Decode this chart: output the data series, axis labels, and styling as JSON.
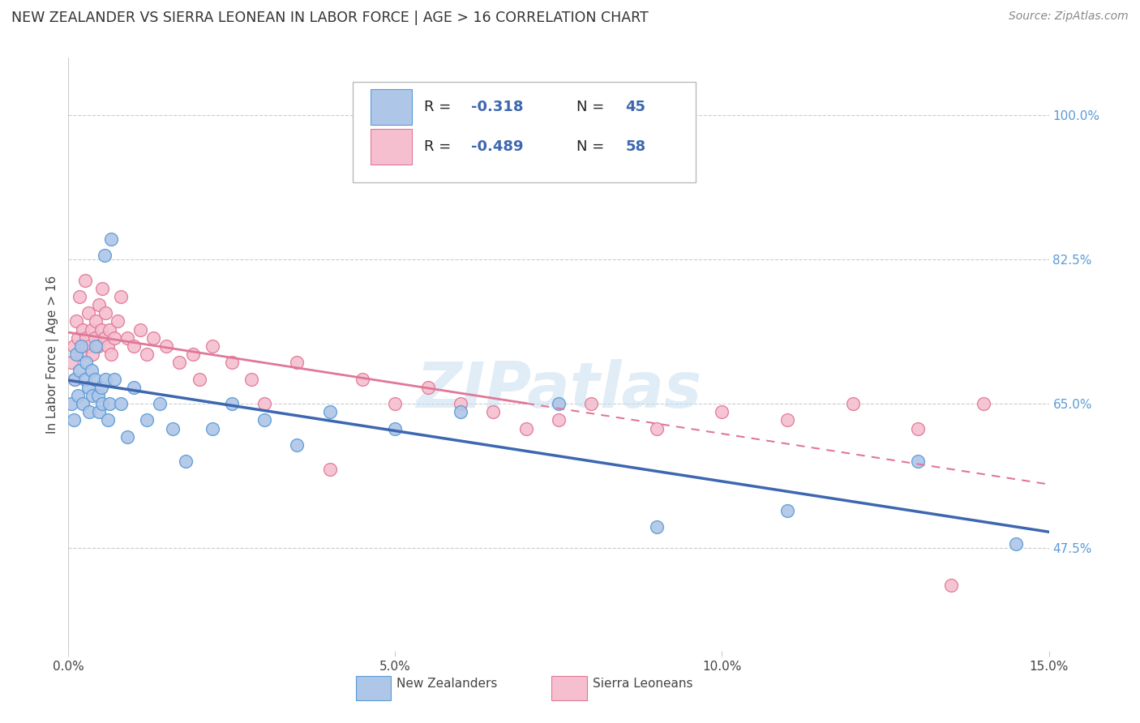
{
  "title": "NEW ZEALANDER VS SIERRA LEONEAN IN LABOR FORCE | AGE > 16 CORRELATION CHART",
  "source": "Source: ZipAtlas.com",
  "xlabel_ticks": [
    "0.0%",
    "5.0%",
    "10.0%",
    "15.0%"
  ],
  "xlabel_tick_vals": [
    0.0,
    5.0,
    10.0,
    15.0
  ],
  "ylabel_ticks": [
    "47.5%",
    "65.0%",
    "82.5%",
    "100.0%"
  ],
  "ylabel_tick_vals": [
    47.5,
    65.0,
    82.5,
    100.0
  ],
  "ylabel_label": "In Labor Force | Age > 16",
  "xlim": [
    0.0,
    15.0
  ],
  "ylim": [
    35.0,
    107.0
  ],
  "watermark": "ZIPatlas",
  "nz_color": "#aec6e8",
  "nz_edge_color": "#5b9bd5",
  "sl_color": "#f5bfd0",
  "sl_edge_color": "#e07898",
  "nz_line_color": "#3d67b0",
  "sl_line_color": "#e07898",
  "legend_r_nz": "-0.318",
  "legend_n_nz": "45",
  "legend_r_sl": "-0.489",
  "legend_n_sl": "58",
  "nz_x": [
    0.05,
    0.08,
    0.1,
    0.12,
    0.15,
    0.17,
    0.2,
    0.22,
    0.25,
    0.27,
    0.3,
    0.32,
    0.35,
    0.37,
    0.4,
    0.42,
    0.45,
    0.47,
    0.5,
    0.52,
    0.55,
    0.57,
    0.6,
    0.63,
    0.65,
    0.7,
    0.8,
    0.9,
    1.0,
    1.2,
    1.4,
    1.6,
    1.8,
    2.2,
    2.5,
    3.0,
    3.5,
    4.0,
    5.0,
    6.0,
    7.5,
    9.0,
    11.0,
    13.0,
    14.5
  ],
  "nz_y": [
    65,
    63,
    68,
    71,
    66,
    69,
    72,
    65,
    68,
    70,
    67,
    64,
    69,
    66,
    68,
    72,
    66,
    64,
    67,
    65,
    83,
    68,
    63,
    65,
    85,
    68,
    65,
    61,
    67,
    63,
    65,
    62,
    58,
    62,
    65,
    63,
    60,
    64,
    62,
    64,
    65,
    50,
    52,
    58,
    48
  ],
  "sl_x": [
    0.05,
    0.08,
    0.1,
    0.12,
    0.15,
    0.17,
    0.2,
    0.22,
    0.25,
    0.27,
    0.3,
    0.32,
    0.35,
    0.37,
    0.4,
    0.42,
    0.45,
    0.47,
    0.5,
    0.52,
    0.55,
    0.57,
    0.6,
    0.63,
    0.65,
    0.7,
    0.75,
    0.8,
    0.9,
    1.0,
    1.1,
    1.2,
    1.3,
    1.5,
    1.7,
    1.9,
    2.0,
    2.2,
    2.5,
    2.8,
    3.0,
    3.5,
    4.0,
    4.5,
    5.0,
    5.5,
    6.0,
    6.5,
    7.0,
    7.5,
    8.0,
    9.0,
    10.0,
    11.0,
    12.0,
    13.0,
    13.5,
    14.0
  ],
  "sl_y": [
    70,
    72,
    68,
    75,
    73,
    78,
    71,
    74,
    80,
    73,
    76,
    72,
    74,
    71,
    73,
    75,
    72,
    77,
    74,
    79,
    73,
    76,
    72,
    74,
    71,
    73,
    75,
    78,
    73,
    72,
    74,
    71,
    73,
    72,
    70,
    71,
    68,
    72,
    70,
    68,
    65,
    70,
    57,
    68,
    65,
    67,
    65,
    64,
    62,
    63,
    65,
    62,
    64,
    63,
    65,
    62,
    43,
    65
  ]
}
